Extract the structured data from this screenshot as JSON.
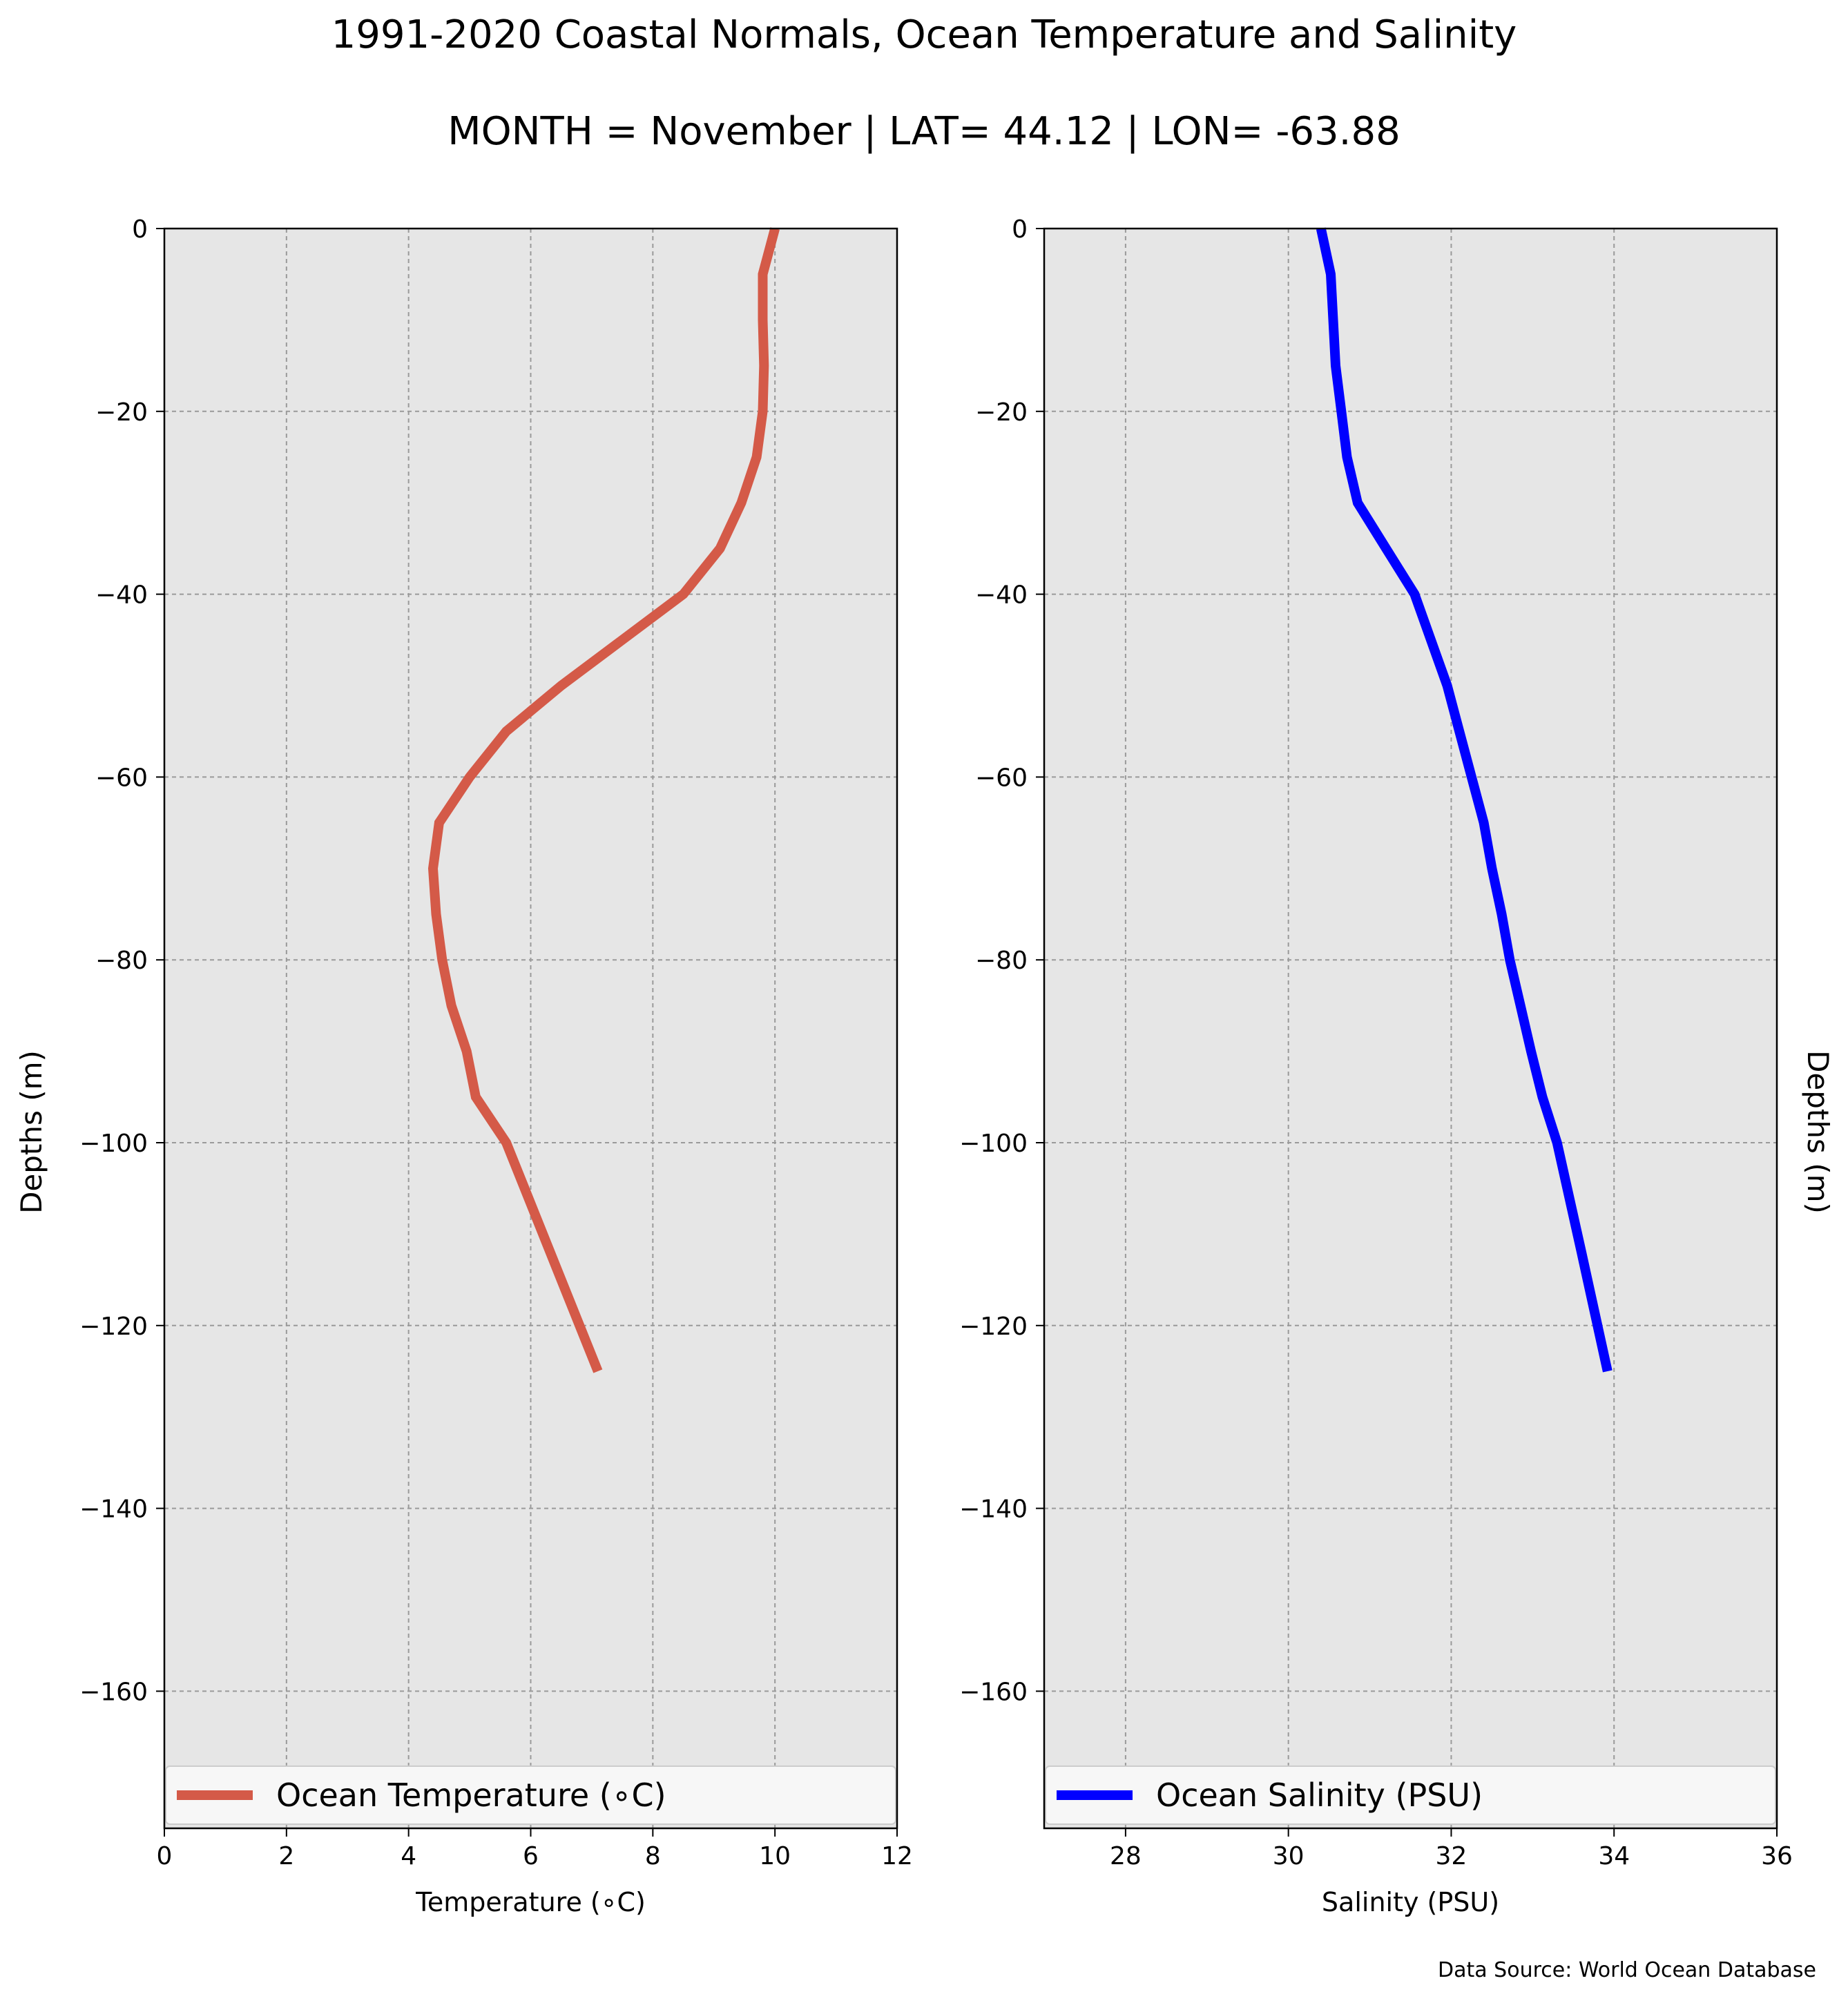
{
  "title": "1991-2020 Coastal Normals, Ocean Temperature and Salinity",
  "subtitle": "MONTH = November | LAT= 44.12 | LON= -63.88",
  "source": "Data Source: World Ocean Database",
  "chart_data": [
    {
      "type": "line",
      "xlabel": "Temperature (∘C)",
      "ylabel": "Depths (m)",
      "xlim": [
        0,
        12
      ],
      "ylim": [
        -175,
        0
      ],
      "xticks": [
        0,
        2,
        4,
        6,
        8,
        10,
        12
      ],
      "xtick_labels": [
        "0",
        "2",
        "4",
        "6",
        "8",
        "10",
        "12"
      ],
      "yticks": [
        0,
        -20,
        -40,
        -60,
        -80,
        -100,
        -120,
        -140,
        -160
      ],
      "ytick_labels": [
        "0",
        "−20",
        "−40",
        "−60",
        "−80",
        "−100",
        "−120",
        "−140",
        "−160"
      ],
      "grid": true,
      "legend_position": "bottom",
      "background": "#e6e6e6",
      "series": [
        {
          "name": "Ocean Temperature (∘C)",
          "color": "#d45a48",
          "x": [
            10.0,
            9.8,
            9.8,
            9.82,
            9.8,
            9.7,
            9.45,
            9.1,
            8.5,
            7.5,
            6.5,
            5.6,
            5.0,
            4.5,
            4.4,
            4.45,
            4.55,
            4.7,
            4.95,
            5.1,
            5.6,
            6.5,
            7.1
          ],
          "y": [
            0,
            -5,
            -10,
            -15,
            -20,
            -25,
            -30,
            -35,
            -40,
            -45,
            -50,
            -55,
            -60,
            -65,
            -70,
            -75,
            -80,
            -85,
            -90,
            -95,
            -100,
            -115,
            -125
          ]
        }
      ]
    },
    {
      "type": "line",
      "xlabel": "Salinity (PSU)",
      "ylabel": "Depths (m)",
      "xlim": [
        27,
        36
      ],
      "ylim": [
        -175,
        0
      ],
      "xticks": [
        28,
        30,
        32,
        34,
        36
      ],
      "xtick_labels": [
        "28",
        "30",
        "32",
        "34",
        "36"
      ],
      "yticks": [
        0,
        -20,
        -40,
        -60,
        -80,
        -100,
        -120,
        -140,
        -160
      ],
      "ytick_labels": [
        "0",
        "−20",
        "−40",
        "−60",
        "−80",
        "−100",
        "−120",
        "−140",
        "−160"
      ],
      "grid": true,
      "legend_position": "bottom",
      "background": "#e6e6e6",
      "series": [
        {
          "name": "Ocean Salinity (PSU)",
          "color": "#0000ff",
          "x": [
            30.4,
            30.52,
            30.55,
            30.58,
            30.65,
            30.72,
            30.85,
            31.2,
            31.55,
            31.75,
            31.95,
            32.1,
            32.25,
            32.4,
            32.5,
            32.62,
            32.72,
            32.85,
            32.98,
            33.12,
            33.3,
            33.6,
            33.92
          ],
          "y": [
            0,
            -5,
            -10,
            -15,
            -20,
            -25,
            -30,
            -35,
            -40,
            -45,
            -50,
            -55,
            -60,
            -65,
            -70,
            -75,
            -80,
            -85,
            -90,
            -95,
            -100,
            -112,
            -125
          ]
        }
      ]
    }
  ]
}
